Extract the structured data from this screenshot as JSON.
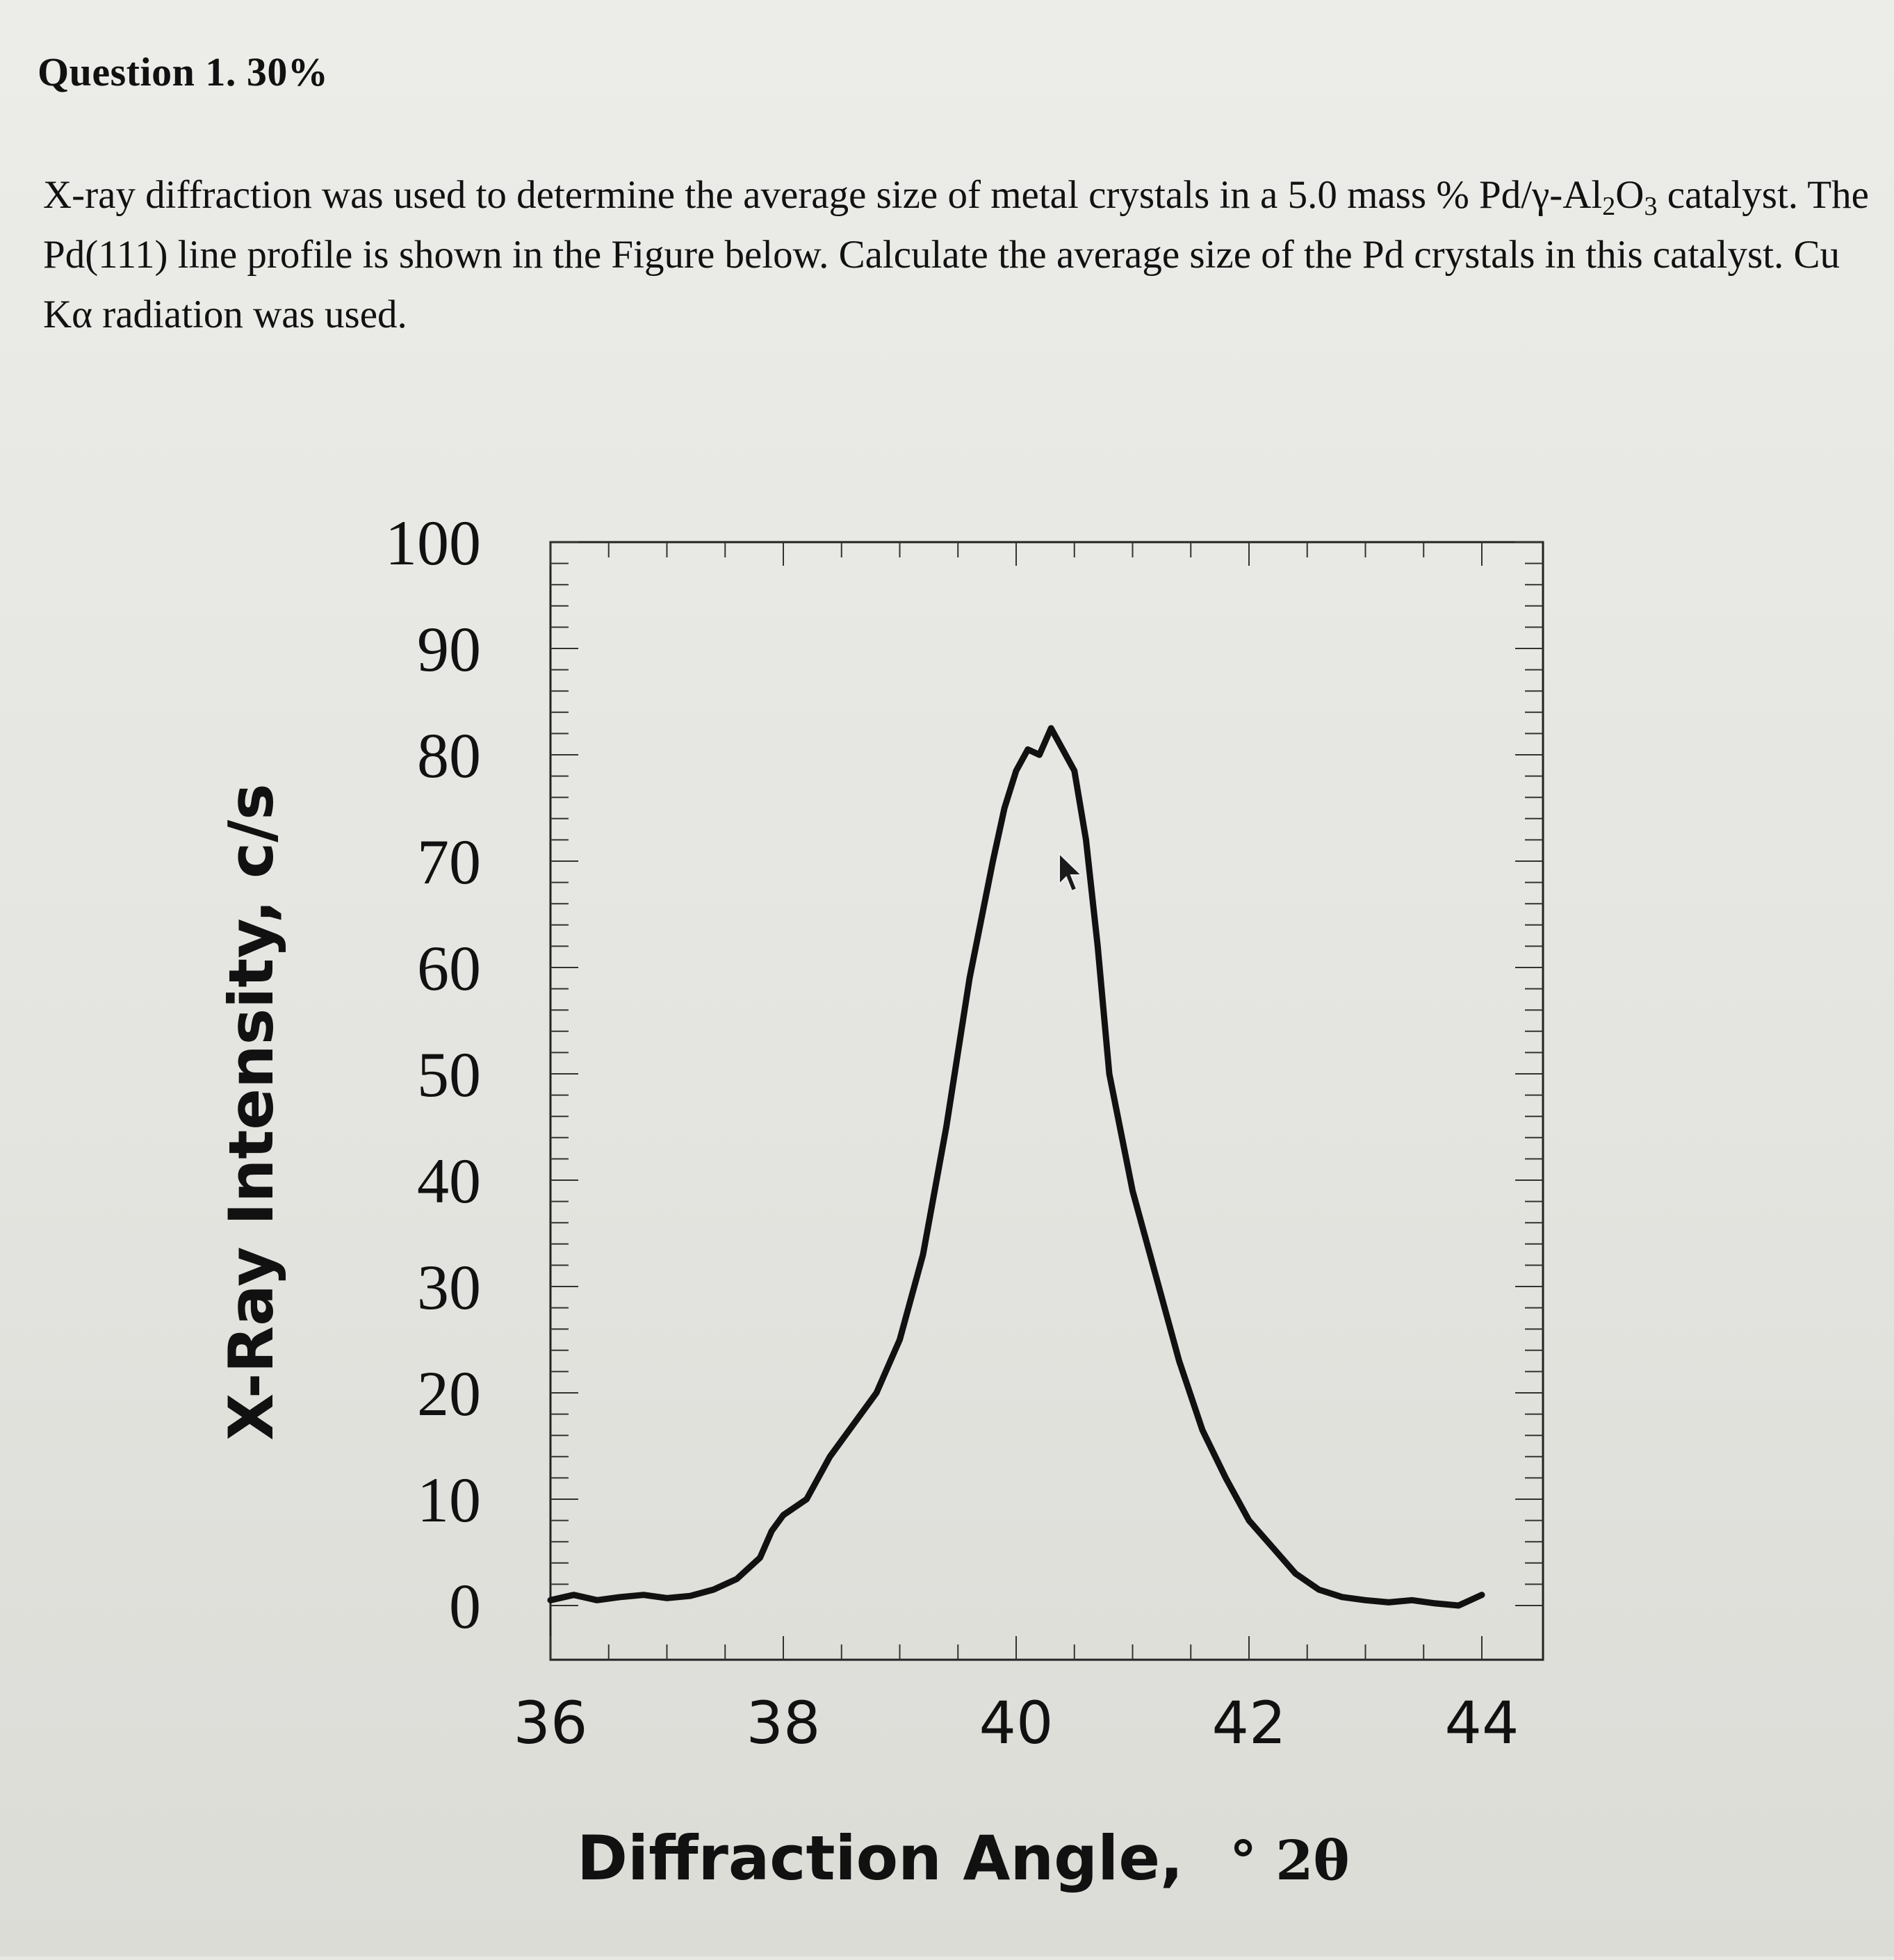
{
  "question": {
    "title": "Question 1. 30%",
    "text_parts": [
      "X-ray diffraction was used to determine the average size of metal crystals in a 5.0 mass % Pd/γ-Al",
      "2",
      "O",
      "3",
      " catalyst. The Pd(111) line profile is shown in the Figure below. Calculate the average size of the Pd crystals in this catalyst. Cu Kα radiation was used."
    ]
  },
  "chart_data": {
    "type": "line",
    "title": "",
    "xlabel": "Diffraction Angle,",
    "xlabel_unit": "° 2θ",
    "ylabel": "X-Ray Intensity, c/s",
    "xlim": [
      36,
      44
    ],
    "ylim": [
      0,
      100
    ],
    "x_ticks": [
      36,
      38,
      40,
      42,
      44
    ],
    "y_ticks": [
      0,
      10,
      20,
      30,
      40,
      50,
      60,
      70,
      80,
      90,
      100
    ],
    "grid": false,
    "series": [
      {
        "color": "#111111",
        "x": [
          36.0,
          36.2,
          36.4,
          36.6,
          36.8,
          37.0,
          37.2,
          37.4,
          37.6,
          37.8,
          37.9,
          38.0,
          38.2,
          38.4,
          38.6,
          38.8,
          39.0,
          39.2,
          39.4,
          39.6,
          39.8,
          39.9,
          40.0,
          40.1,
          40.2,
          40.3,
          40.4,
          40.5,
          40.6,
          40.7,
          40.8,
          41.0,
          41.2,
          41.4,
          41.6,
          41.8,
          42.0,
          42.2,
          42.4,
          42.6,
          42.8,
          43.0,
          43.2,
          43.4,
          43.6,
          43.8,
          44.0
        ],
        "y": [
          0.5,
          1.0,
          0.5,
          0.8,
          1.0,
          0.7,
          0.9,
          1.5,
          2.5,
          4.5,
          7.0,
          8.5,
          10.0,
          14.0,
          17.0,
          20.0,
          25.0,
          33.0,
          45.0,
          59.0,
          70.0,
          75.0,
          78.5,
          80.5,
          80.0,
          82.5,
          80.5,
          78.5,
          72.0,
          62.0,
          50.0,
          39.0,
          31.0,
          23.0,
          16.5,
          12.0,
          8.0,
          5.5,
          3.0,
          1.5,
          0.8,
          0.5,
          0.3,
          0.5,
          0.2,
          0.0,
          1.0
        ]
      }
    ]
  }
}
